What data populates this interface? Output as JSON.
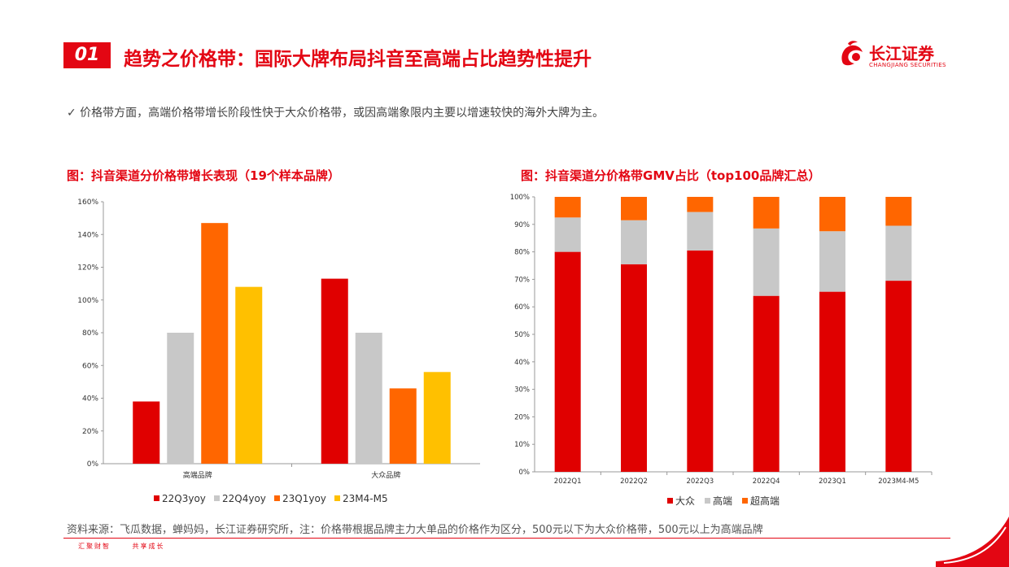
{
  "header": {
    "section_num": "01",
    "title": "趋势之价格带：国际大牌布局抖音至高端占比趋势性提升",
    "logo_cn": "长江证券",
    "logo_en": "CHANGJIANG SECURITIES"
  },
  "summary": "✓ 价格带方面，高端价格带增长阶段性快于大众价格带，或因高端象限内主要以增速较快的海外大牌为主。",
  "chart1_title": "图：抖音渠道分价格带增长表现（19个样本品牌）",
  "chart2_title": "图：抖音渠道分价格带GMV占比（top100品牌汇总）",
  "source": "资料来源：飞瓜数据，蝉妈妈，长江证券研究所，注：价格带根据品牌主力大单品的价格作为区分，500元以下为大众价格带，500元以上为高端品牌",
  "footer": {
    "slogan1": "汇聚财智",
    "slogan2": "共享成长"
  },
  "colors": {
    "brand_red": "#e30613",
    "red": "#e00000",
    "gray": "#c8c8c8",
    "orange": "#ff6600",
    "yellow": "#ffc000"
  },
  "chart_data": [
    {
      "type": "bar",
      "title": "图：抖音渠道分价格带增长表现（19个样本品牌）",
      "categories": [
        "高端品牌",
        "大众品牌"
      ],
      "series": [
        {
          "name": "22Q3yoy",
          "color": "#e00000",
          "values": [
            38,
            113
          ]
        },
        {
          "name": "22Q4yoy",
          "color": "#c8c8c8",
          "values": [
            80,
            80
          ]
        },
        {
          "name": "23Q1yoy",
          "color": "#ff6600",
          "values": [
            147,
            46
          ]
        },
        {
          "name": "23M4-M5",
          "color": "#ffc000",
          "values": [
            108,
            56
          ]
        }
      ],
      "ylim": [
        0,
        160
      ],
      "yticks": [
        "0%",
        "20%",
        "40%",
        "60%",
        "80%",
        "100%",
        "120%",
        "140%",
        "160%"
      ],
      "legend": "bottom"
    },
    {
      "type": "bar",
      "stacked": true,
      "title": "图：抖音渠道分价格带GMV占比（top100品牌汇总）",
      "categories": [
        "2022Q1",
        "2022Q2",
        "2022Q3",
        "2022Q4",
        "2023Q1",
        "2023M4-M5"
      ],
      "series": [
        {
          "name": "大众",
          "color": "#e00000",
          "values": [
            80,
            75.5,
            80.5,
            64,
            65.5,
            69.5
          ]
        },
        {
          "name": "高端",
          "color": "#c8c8c8",
          "values": [
            12.5,
            16,
            14,
            24.5,
            22,
            20
          ]
        },
        {
          "name": "超高端",
          "color": "#ff6600",
          "values": [
            7.5,
            8.5,
            5.5,
            11.5,
            12.5,
            10.5
          ]
        }
      ],
      "ylim": [
        0,
        100
      ],
      "yticks": [
        "0%",
        "10%",
        "20%",
        "30%",
        "40%",
        "50%",
        "60%",
        "70%",
        "80%",
        "90%",
        "100%"
      ],
      "legend": "bottom"
    }
  ]
}
